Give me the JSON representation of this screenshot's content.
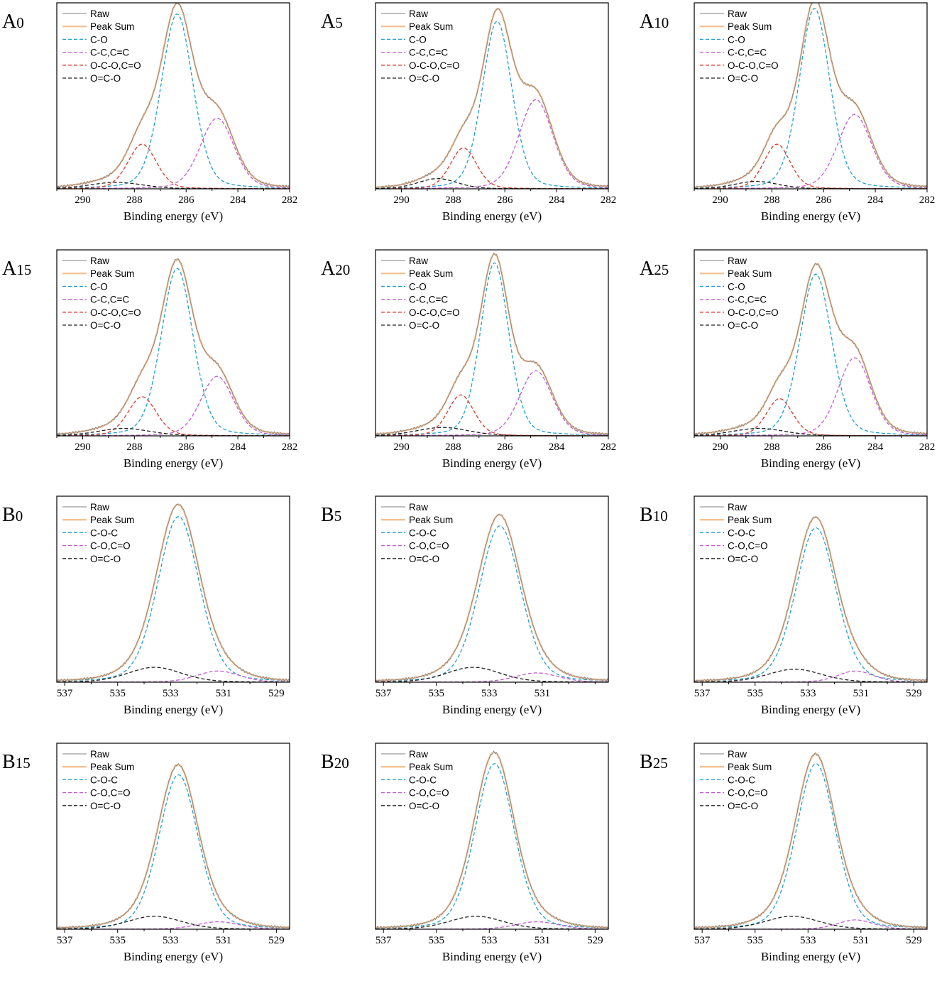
{
  "colors": {
    "raw": "#7f7f7f",
    "peak_sum": "#f5c193",
    "c_o": "#1f9fd4",
    "c_c": "#c45ad6",
    "o_c_o": "#d93a2b",
    "o_c_o_black": "#222222",
    "axis": "#000000"
  },
  "xlabel": "Binding energy (eV)",
  "chart_data": [
    {
      "type": "line",
      "label": "A",
      "sub": "0",
      "xlim": [
        291,
        282
      ],
      "xticks": [
        "290",
        "288",
        "286",
        "284",
        "282"
      ],
      "xlabel": "Binding energy (eV)",
      "legend": [
        "Raw",
        "Peak Sum",
        "C-O",
        "C-C,C=C",
        "O-C-O,C=O",
        "O=C-O"
      ],
      "peaks": [
        {
          "name": "C-O",
          "center": 286.35,
          "height": 0.94,
          "fwhm": 1.45
        },
        {
          "name": "C-C,C=C",
          "center": 284.8,
          "height": 0.38,
          "fwhm": 1.55
        },
        {
          "name": "O-C-O,C=O",
          "center": 287.7,
          "height": 0.24,
          "fwhm": 1.3
        },
        {
          "name": "O=C-O",
          "center": 288.7,
          "height": 0.035,
          "fwhm": 2.4
        }
      ]
    },
    {
      "type": "line",
      "label": "A",
      "sub": "5",
      "xlim": [
        291,
        282
      ],
      "xticks": [
        "290",
        "288",
        "286",
        "284",
        "282"
      ],
      "xlabel": "Binding energy (eV)",
      "legend": [
        "Raw",
        "Peak Sum",
        "C-O",
        "C-C,C=C",
        "O-C-O,C=O",
        "O=C-O"
      ],
      "peaks": [
        {
          "name": "C-O",
          "center": 286.3,
          "height": 0.9,
          "fwhm": 1.35
        },
        {
          "name": "C-C,C=C",
          "center": 284.8,
          "height": 0.48,
          "fwhm": 1.55
        },
        {
          "name": "O-C-O,C=O",
          "center": 287.6,
          "height": 0.22,
          "fwhm": 1.2
        },
        {
          "name": "O=C-O",
          "center": 288.6,
          "height": 0.055,
          "fwhm": 1.8
        }
      ]
    },
    {
      "type": "line",
      "label": "A",
      "sub": "10",
      "xlim": [
        291,
        282
      ],
      "xticks": [
        "290",
        "288",
        "286",
        "284",
        "282"
      ],
      "xlabel": "Binding energy (eV)",
      "legend": [
        "Raw",
        "Peak Sum",
        "C-O",
        "C-C,C=C",
        "O-C-O,C=O",
        "O=C-O"
      ],
      "peaks": [
        {
          "name": "C-O",
          "center": 286.35,
          "height": 0.97,
          "fwhm": 1.4
        },
        {
          "name": "C-C,C=C",
          "center": 284.8,
          "height": 0.4,
          "fwhm": 1.55
        },
        {
          "name": "O-C-O,C=O",
          "center": 287.8,
          "height": 0.24,
          "fwhm": 1.2
        },
        {
          "name": "O=C-O",
          "center": 288.6,
          "height": 0.04,
          "fwhm": 2.0
        }
      ]
    },
    {
      "type": "line",
      "label": "A",
      "sub": "15",
      "xlim": [
        291,
        282
      ],
      "xticks": [
        "290",
        "288",
        "286",
        "284",
        "282"
      ],
      "xlabel": "Binding energy (eV)",
      "legend": [
        "Raw",
        "Peak Sum",
        "C-O",
        "C-C,C=C",
        "O-C-O,C=O",
        "O=C-O"
      ],
      "peaks": [
        {
          "name": "C-O",
          "center": 286.35,
          "height": 0.9,
          "fwhm": 1.45
        },
        {
          "name": "C-C,C=C",
          "center": 284.8,
          "height": 0.32,
          "fwhm": 1.5
        },
        {
          "name": "O-C-O,C=O",
          "center": 287.7,
          "height": 0.21,
          "fwhm": 1.3
        },
        {
          "name": "O=C-O",
          "center": 288.4,
          "height": 0.04,
          "fwhm": 2.4
        }
      ]
    },
    {
      "type": "line",
      "label": "A",
      "sub": "20",
      "xlim": [
        291,
        282
      ],
      "xticks": [
        "290",
        "288",
        "286",
        "284",
        "282"
      ],
      "xlabel": "Binding energy (eV)",
      "legend": [
        "Raw",
        "Peak Sum",
        "C-O",
        "C-C,C=C",
        "O-C-O,C=O",
        "O=C-O"
      ],
      "peaks": [
        {
          "name": "C-O",
          "center": 286.4,
          "height": 0.93,
          "fwhm": 1.3
        },
        {
          "name": "C-C,C=C",
          "center": 284.8,
          "height": 0.35,
          "fwhm": 1.5
        },
        {
          "name": "O-C-O,C=O",
          "center": 287.7,
          "height": 0.22,
          "fwhm": 1.2
        },
        {
          "name": "O=C-O",
          "center": 288.4,
          "height": 0.045,
          "fwhm": 2.4
        }
      ]
    },
    {
      "type": "line",
      "label": "A",
      "sub": "25",
      "xlim": [
        291,
        282
      ],
      "xticks": [
        "290",
        "288",
        "286",
        "284",
        "282"
      ],
      "xlabel": "Binding energy (eV)",
      "legend": [
        "Raw",
        "Peak Sum",
        "C-O",
        "C-C,C=C",
        "O-C-O,C=O",
        "O=C-O"
      ],
      "peaks": [
        {
          "name": "C-O",
          "center": 286.3,
          "height": 0.87,
          "fwhm": 1.45
        },
        {
          "name": "C-C,C=C",
          "center": 284.8,
          "height": 0.42,
          "fwhm": 1.5
        },
        {
          "name": "O-C-O,C=O",
          "center": 287.7,
          "height": 0.2,
          "fwhm": 1.2
        },
        {
          "name": "O=C-O",
          "center": 288.5,
          "height": 0.04,
          "fwhm": 2.4
        }
      ]
    },
    {
      "type": "line",
      "label": "B",
      "sub": "0",
      "xlim": [
        537.3,
        528.5
      ],
      "xticks": [
        "537",
        "535",
        "533",
        "531",
        "529"
      ],
      "xlabel": "Binding energy (eV)",
      "legend": [
        "Raw",
        "Peak Sum",
        "C-O-C",
        "C-O,C=O",
        "O=C-O"
      ],
      "peaks": [
        {
          "name": "C-O-C",
          "center": 532.7,
          "height": 0.89,
          "fwhm": 1.85
        },
        {
          "name": "C-O,C=O",
          "center": 531.2,
          "height": 0.06,
          "fwhm": 1.9
        },
        {
          "name": "O=C-O",
          "center": 533.6,
          "height": 0.08,
          "fwhm": 2.4
        }
      ]
    },
    {
      "type": "line",
      "label": "B",
      "sub": "5",
      "xlim": [
        537.3,
        528.5
      ],
      "xticks": [
        "537",
        "535",
        "533",
        "531"
      ],
      "xlabel": "Binding energy (eV)",
      "legend": [
        "Raw",
        "Peak Sum",
        "C-O-C",
        "C-O,C=O",
        "O=C-O"
      ],
      "peaks": [
        {
          "name": "C-O-C",
          "center": 532.6,
          "height": 0.84,
          "fwhm": 1.85
        },
        {
          "name": "C-O,C=O",
          "center": 531.2,
          "height": 0.05,
          "fwhm": 1.9
        },
        {
          "name": "O=C-O",
          "center": 533.6,
          "height": 0.08,
          "fwhm": 2.4
        }
      ]
    },
    {
      "type": "line",
      "label": "B",
      "sub": "10",
      "xlim": [
        537.3,
        528.5
      ],
      "xticks": [
        "537",
        "535",
        "533",
        "531",
        "529"
      ],
      "xlabel": "Binding energy (eV)",
      "legend": [
        "Raw",
        "Peak Sum",
        "C-O-C",
        "C-O,C=O",
        "O=C-O"
      ],
      "peaks": [
        {
          "name": "C-O-C",
          "center": 532.7,
          "height": 0.83,
          "fwhm": 1.8
        },
        {
          "name": "C-O,C=O",
          "center": 531.2,
          "height": 0.06,
          "fwhm": 1.6
        },
        {
          "name": "O=C-O",
          "center": 533.5,
          "height": 0.07,
          "fwhm": 2.4
        }
      ]
    },
    {
      "type": "line",
      "label": "B",
      "sub": "15",
      "xlim": [
        537.3,
        528.5
      ],
      "xticks": [
        "537",
        "535",
        "533",
        "531",
        "529"
      ],
      "xlabel": "Binding energy (eV)",
      "legend": [
        "Raw",
        "Peak Sum",
        "C-O-C",
        "C-O,C=O",
        "O=C-O"
      ],
      "peaks": [
        {
          "name": "C-O-C",
          "center": 532.7,
          "height": 0.83,
          "fwhm": 1.75
        },
        {
          "name": "C-O,C=O",
          "center": 531.2,
          "height": 0.04,
          "fwhm": 1.9
        },
        {
          "name": "O=C-O",
          "center": 533.6,
          "height": 0.07,
          "fwhm": 2.4
        }
      ]
    },
    {
      "type": "line",
      "label": "B",
      "sub": "20",
      "xlim": [
        537.3,
        528.5
      ],
      "xticks": [
        "537",
        "535",
        "533",
        "531",
        "529"
      ],
      "xlabel": "Binding energy (eV)",
      "legend": [
        "Raw",
        "Peak Sum",
        "C-O-C",
        "C-O,C=O",
        "O=C-O"
      ],
      "peaks": [
        {
          "name": "C-O-C",
          "center": 532.8,
          "height": 0.89,
          "fwhm": 1.75
        },
        {
          "name": "C-O,C=O",
          "center": 531.2,
          "height": 0.04,
          "fwhm": 1.9
        },
        {
          "name": "O=C-O",
          "center": 533.5,
          "height": 0.07,
          "fwhm": 2.4
        }
      ]
    },
    {
      "type": "line",
      "label": "B",
      "sub": "25",
      "xlim": [
        537.3,
        528.5
      ],
      "xticks": [
        "537",
        "535",
        "533",
        "531",
        "529"
      ],
      "xlabel": "Binding energy (eV)",
      "legend": [
        "Raw",
        "Peak Sum",
        "C-O-C",
        "C-O,C=O",
        "O=C-O"
      ],
      "peaks": [
        {
          "name": "C-O-C",
          "center": 532.7,
          "height": 0.89,
          "fwhm": 1.75
        },
        {
          "name": "C-O,C=O",
          "center": 531.2,
          "height": 0.05,
          "fwhm": 1.6
        },
        {
          "name": "O=C-O",
          "center": 533.6,
          "height": 0.07,
          "fwhm": 2.4
        }
      ]
    }
  ]
}
